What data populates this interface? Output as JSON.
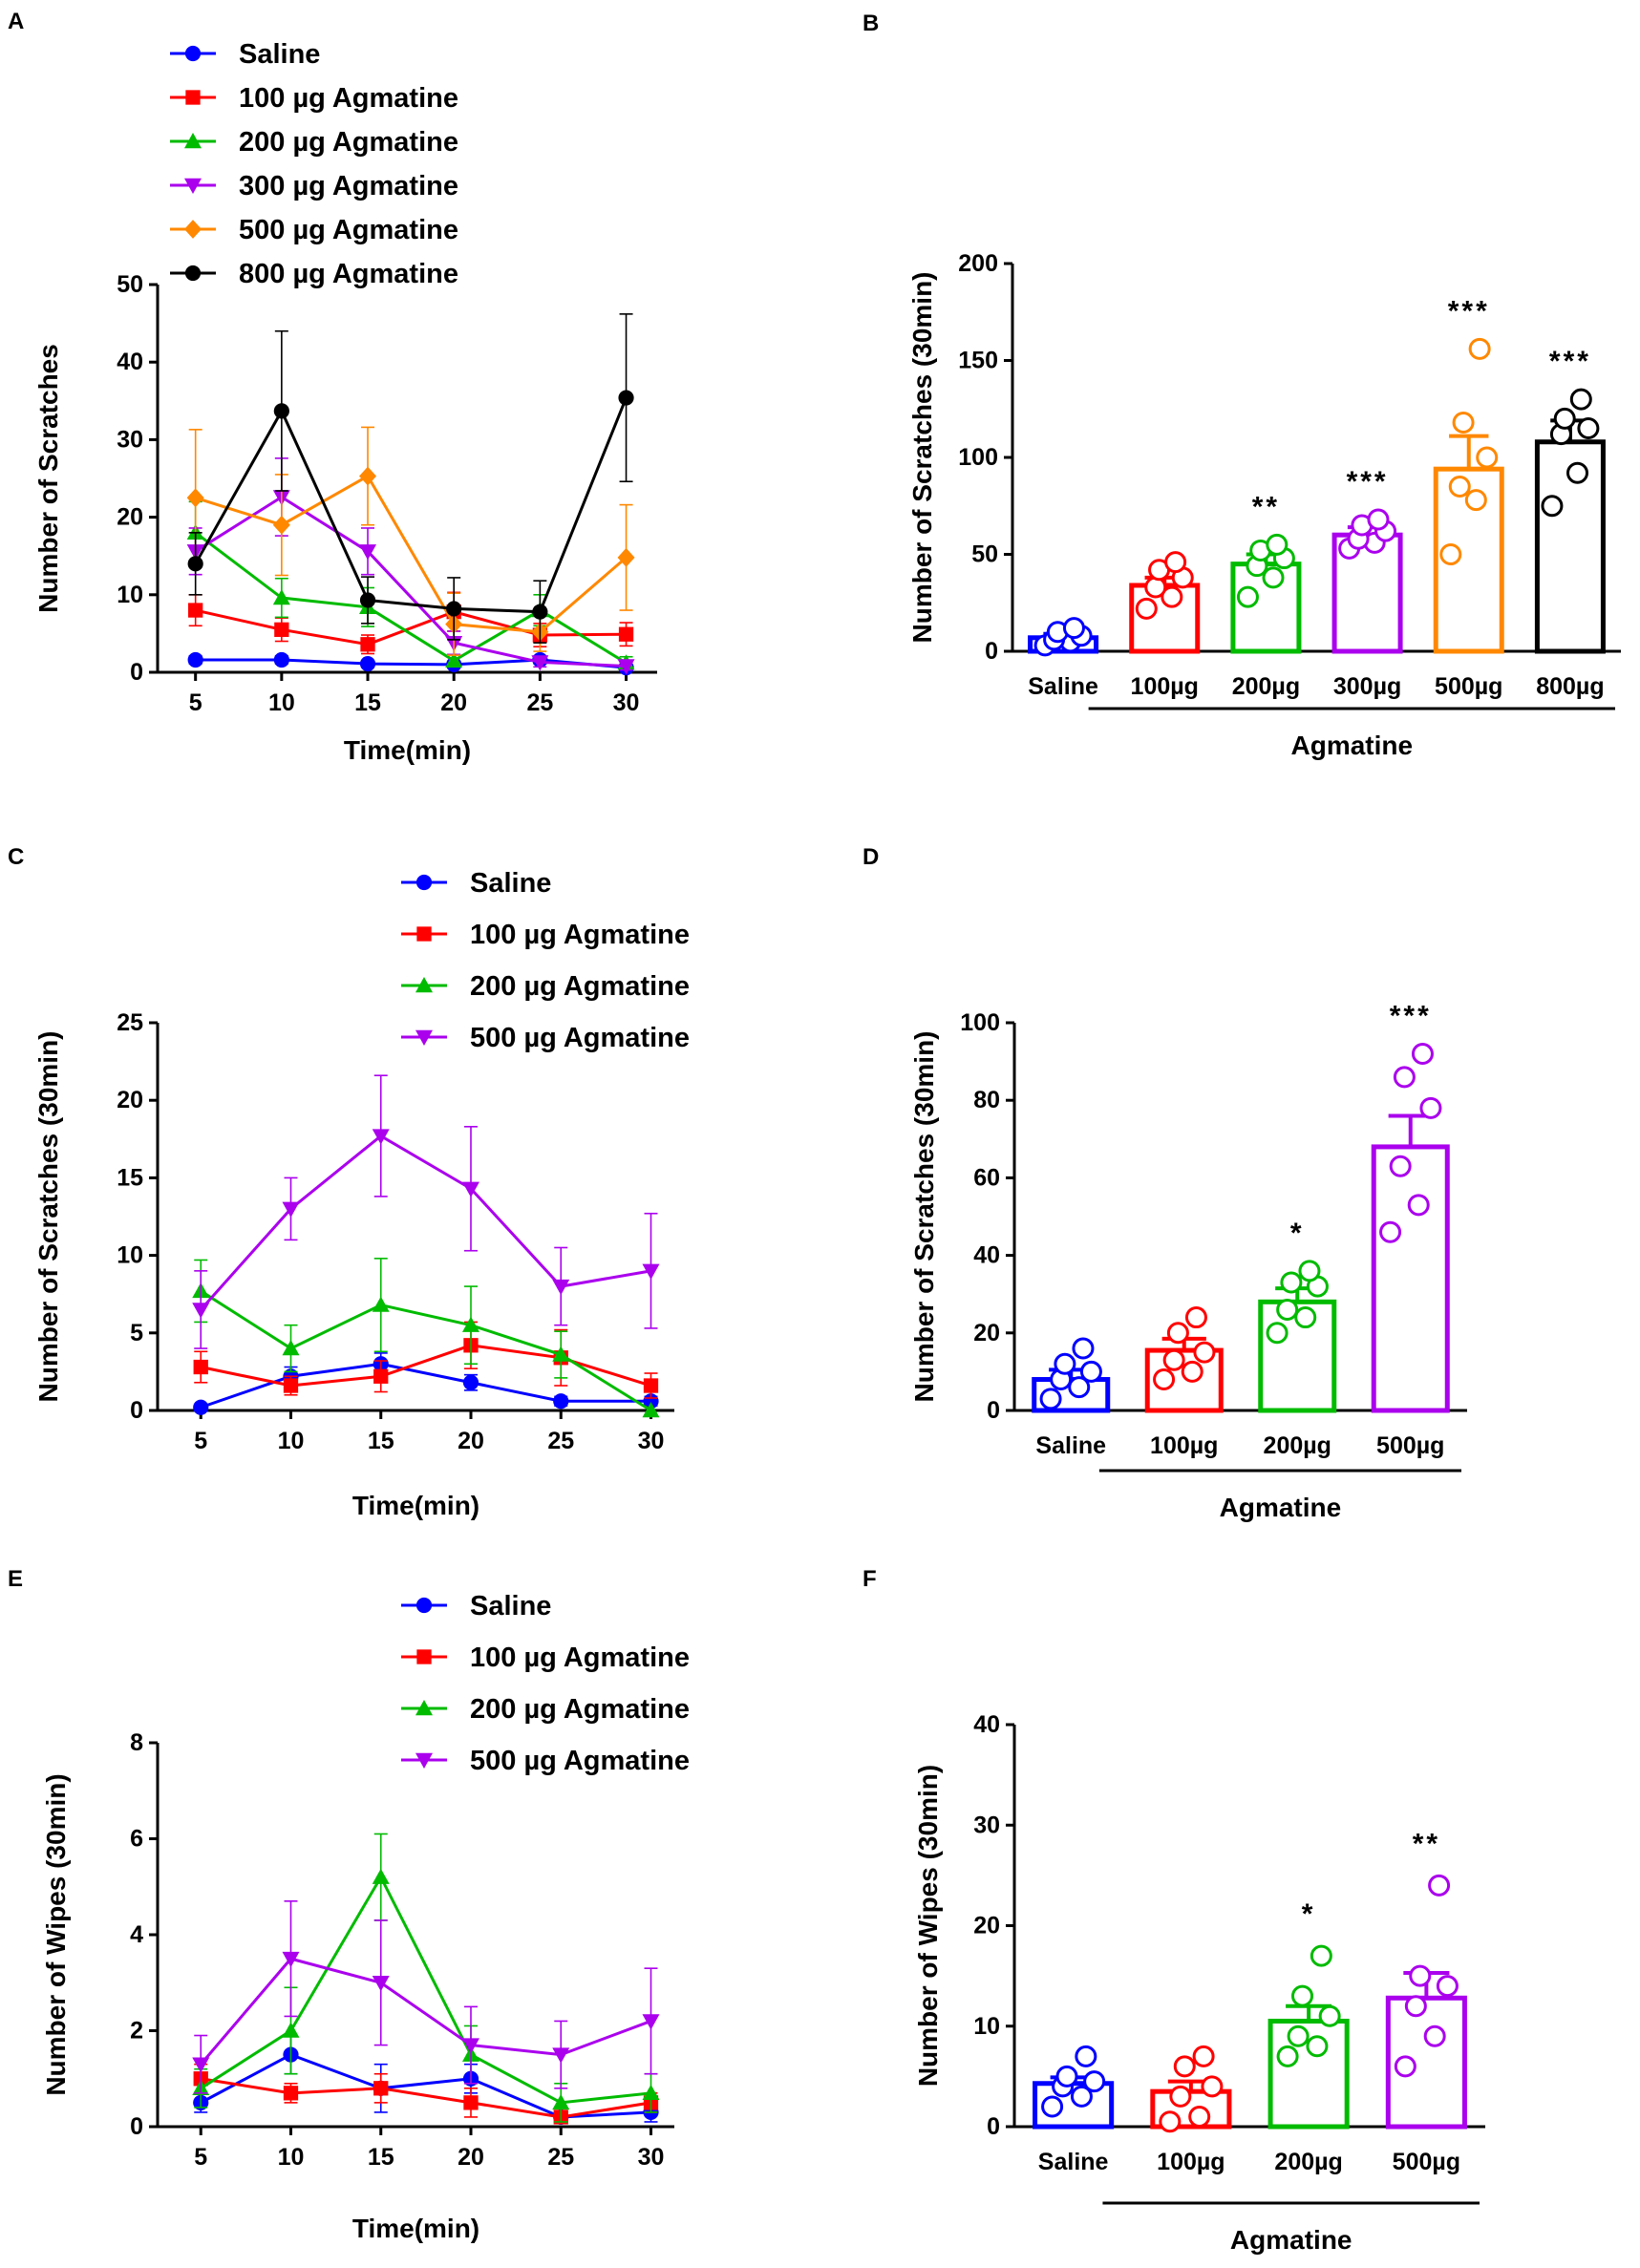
{
  "colors": {
    "saline": "#0000ff",
    "a100": "#ff0000",
    "a200": "#00bb00",
    "a300": "#aa00ee",
    "a500": "#ff8800",
    "a800": "#000000",
    "purple_cd": "#aa00ee"
  },
  "chart_data": [
    {
      "id": "A",
      "panel_label": "A",
      "type": "line",
      "title": "",
      "xlabel": "Time(min)",
      "ylabel": "Number of Scratches",
      "x": [
        5,
        10,
        15,
        20,
        25,
        30
      ],
      "xlim": [
        2.8,
        31.8
      ],
      "ylim": [
        0,
        50
      ],
      "yticks": [
        0,
        10,
        20,
        30,
        40,
        50
      ],
      "legend": "top-left",
      "series": [
        {
          "name": "Saline",
          "color_key": "saline",
          "marker": "circle",
          "values": [
            1.6,
            1.6,
            1.1,
            1.0,
            1.6,
            0.6
          ],
          "errors": [
            0.5,
            0.5,
            0.4,
            0.4,
            0.5,
            0.3
          ]
        },
        {
          "name": "100 µg Agmatine",
          "color_key": "a100",
          "marker": "square",
          "values": [
            8.0,
            5.5,
            3.6,
            7.8,
            4.8,
            4.9
          ],
          "errors": [
            2.0,
            1.5,
            1.2,
            2.5,
            1.5,
            1.5
          ]
        },
        {
          "name": "200 µg Agmatine",
          "color_key": "a200",
          "marker": "triangle",
          "values": [
            18.0,
            9.6,
            8.4,
            1.5,
            8.0,
            1.2
          ],
          "errors": [
            4.0,
            2.5,
            2.5,
            0.8,
            2.0,
            0.8
          ]
        },
        {
          "name": "300 µg Agmatine",
          "color_key": "a300",
          "marker": "triangle-down",
          "values": [
            15.6,
            22.6,
            15.6,
            3.8,
            1.3,
            0.8
          ],
          "errors": [
            3.0,
            5.0,
            3.0,
            1.5,
            0.6,
            0.5
          ]
        },
        {
          "name": "500 µg Agmatine",
          "color_key": "a500",
          "marker": "diamond",
          "values": [
            22.5,
            19.0,
            25.3,
            6.2,
            5.2,
            14.8
          ],
          "errors": [
            8.8,
            6.5,
            6.3,
            4.0,
            2.5,
            6.8
          ]
        },
        {
          "name": "800 µg Agmatine",
          "color_key": "a800",
          "marker": "circle",
          "values": [
            14.0,
            33.7,
            9.3,
            8.2,
            7.8,
            35.4
          ],
          "errors": [
            4.0,
            10.3,
            3.0,
            4.0,
            4.0,
            10.8
          ]
        }
      ]
    },
    {
      "id": "B",
      "panel_label": "B",
      "type": "bar",
      "title": "",
      "xlabel": "",
      "ylabel": "Number of Scratches (30min)",
      "group_label": "Agmatine",
      "categories": [
        "Saline",
        "100µg",
        "200µg",
        "300µg",
        "500µg",
        "800µg"
      ],
      "color_keys": [
        "saline",
        "a100",
        "a200",
        "a300",
        "a500",
        "a800"
      ],
      "values": [
        7,
        34,
        45,
        60,
        94,
        108
      ],
      "errors": [
        2,
        4,
        5,
        4,
        17,
        11
      ],
      "points": [
        [
          3,
          5,
          6,
          8,
          10,
          12
        ],
        [
          22,
          28,
          33,
          38,
          42,
          46
        ],
        [
          28,
          38,
          44,
          48,
          52,
          55
        ],
        [
          53,
          56,
          58,
          62,
          65,
          68
        ],
        [
          50,
          78,
          85,
          100,
          118,
          156
        ],
        [
          75,
          92,
          112,
          115,
          120,
          130
        ]
      ],
      "significance": [
        "",
        "",
        "**",
        "***",
        "***",
        "***"
      ],
      "ylim": [
        0,
        200
      ],
      "yticks": [
        0,
        50,
        100,
        150,
        200
      ]
    },
    {
      "id": "C",
      "panel_label": "C",
      "type": "line",
      "title": "",
      "xlabel": "Time(min)",
      "ylabel": "Number of Scratches (30min)",
      "x": [
        5,
        10,
        15,
        20,
        25,
        30
      ],
      "xlim": [
        2.6,
        31.3
      ],
      "ylim": [
        0,
        25
      ],
      "yticks": [
        0,
        5,
        10,
        15,
        20,
        25
      ],
      "legend": "top",
      "series": [
        {
          "name": "Saline",
          "color_key": "saline",
          "marker": "circle",
          "values": [
            0.2,
            2.2,
            3.0,
            1.8,
            0.6,
            0.6
          ],
          "errors": [
            0.2,
            0.6,
            0.7,
            0.5,
            0.3,
            0.3
          ]
        },
        {
          "name": "100 µg Agmatine",
          "color_key": "a100",
          "marker": "square",
          "values": [
            2.8,
            1.6,
            2.2,
            4.2,
            3.4,
            1.6
          ],
          "errors": [
            1.0,
            0.6,
            1.0,
            1.5,
            1.8,
            0.8
          ]
        },
        {
          "name": "200 µg Agmatine",
          "color_key": "a200",
          "marker": "triangle",
          "values": [
            7.7,
            4.0,
            6.8,
            5.5,
            3.6,
            0.0
          ],
          "errors": [
            2.0,
            1.5,
            3.0,
            2.5,
            1.5,
            0.0
          ]
        },
        {
          "name": "500 µg Agmatine",
          "color_key": "purple_cd",
          "marker": "triangle-down",
          "values": [
            6.5,
            13.0,
            17.7,
            14.3,
            8.0,
            9.0
          ],
          "errors": [
            2.5,
            2.0,
            3.9,
            4.0,
            2.5,
            3.7
          ]
        }
      ]
    },
    {
      "id": "D",
      "panel_label": "D",
      "type": "bar",
      "title": "",
      "xlabel": "",
      "ylabel": "Number of Scratches (30min)",
      "group_label": "Agmatine",
      "categories": [
        "Saline",
        "100µg",
        "200µg",
        "500µg"
      ],
      "color_keys": [
        "saline",
        "a100",
        "a200",
        "purple_cd"
      ],
      "values": [
        8,
        15.5,
        28,
        68
      ],
      "errors": [
        2.5,
        3.0,
        3.5,
        8.0
      ],
      "points": [
        [
          3,
          6,
          8,
          10,
          12,
          16
        ],
        [
          8,
          10,
          13,
          15,
          20,
          24
        ],
        [
          20,
          24,
          26,
          32,
          33,
          36
        ],
        [
          46,
          53,
          63,
          78,
          86,
          92
        ]
      ],
      "significance": [
        "",
        "",
        "*",
        "***"
      ],
      "ylim": [
        0,
        100
      ],
      "yticks": [
        0,
        20,
        40,
        60,
        80,
        100
      ]
    },
    {
      "id": "E",
      "panel_label": "E",
      "type": "line",
      "title": "",
      "xlabel": "Time(min)",
      "ylabel": "Number of Wipes (30min)",
      "x": [
        5,
        10,
        15,
        20,
        25,
        30
      ],
      "xlim": [
        2.6,
        31.3
      ],
      "ylim": [
        0,
        8
      ],
      "yticks": [
        0,
        2,
        4,
        6,
        8
      ],
      "legend": "top",
      "series": [
        {
          "name": "Saline",
          "color_key": "saline",
          "marker": "circle",
          "values": [
            0.5,
            1.5,
            0.8,
            1.0,
            0.2,
            0.3
          ],
          "errors": [
            0.2,
            0.4,
            0.5,
            0.3,
            0.1,
            0.2
          ]
        },
        {
          "name": "100 µg Agmatine",
          "color_key": "a100",
          "marker": "square",
          "values": [
            1.0,
            0.7,
            0.8,
            0.5,
            0.2,
            0.5
          ],
          "errors": [
            0.3,
            0.2,
            0.3,
            0.3,
            0.1,
            0.2
          ]
        },
        {
          "name": "200 µg Agmatine",
          "color_key": "a200",
          "marker": "triangle",
          "values": [
            0.8,
            2.0,
            5.2,
            1.5,
            0.5,
            0.7
          ],
          "errors": [
            0.4,
            0.9,
            0.9,
            0.6,
            0.4,
            0.4
          ]
        },
        {
          "name": "500 µg Agmatine",
          "color_key": "purple_cd",
          "marker": "triangle-down",
          "values": [
            1.3,
            3.5,
            3.0,
            1.7,
            1.5,
            2.2
          ],
          "errors": [
            0.6,
            1.2,
            1.3,
            0.8,
            0.7,
            1.1
          ]
        }
      ]
    },
    {
      "id": "F",
      "panel_label": "F",
      "type": "bar",
      "title": "",
      "xlabel": "",
      "ylabel": "Number of Wipes (30min)",
      "group_label": "Agmatine",
      "categories": [
        "Saline",
        "100µg",
        "200µg",
        "500µg"
      ],
      "color_keys": [
        "saline",
        "a100",
        "a200",
        "purple_cd"
      ],
      "values": [
        4.3,
        3.5,
        10.5,
        12.8
      ],
      "errors": [
        0.6,
        1.0,
        1.5,
        2.5
      ],
      "points": [
        [
          2,
          3,
          4,
          4.5,
          5,
          7
        ],
        [
          0.5,
          1,
          3,
          4,
          6,
          7
        ],
        [
          7,
          8,
          9,
          11,
          13,
          17
        ],
        [
          6,
          9,
          12,
          14,
          15,
          24
        ]
      ],
      "significance": [
        "",
        "",
        "*",
        "**"
      ],
      "ylim": [
        0,
        40
      ],
      "yticks": [
        0,
        10,
        20,
        30,
        40
      ]
    }
  ]
}
